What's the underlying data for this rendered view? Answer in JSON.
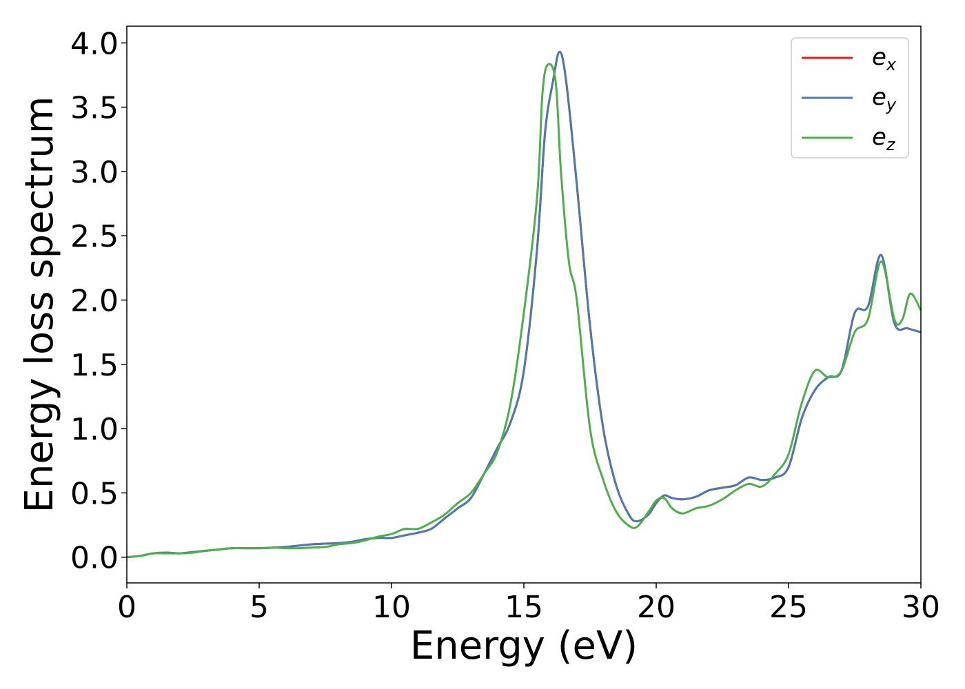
{
  "chart_data": {
    "type": "line",
    "title": "",
    "xlabel": "Energy (eV)",
    "ylabel": "Energy loss spectrum",
    "xlim": [
      0,
      30
    ],
    "ylim": [
      -0.2,
      4.13
    ],
    "grid": false,
    "legend_position": "top-right",
    "x_ticks": [
      0,
      5,
      10,
      15,
      20,
      25,
      30
    ],
    "x_tick_labels": [
      "0",
      "5",
      "10",
      "15",
      "20",
      "25",
      "30"
    ],
    "y_ticks": [
      0.0,
      0.5,
      1.0,
      1.5,
      2.0,
      2.5,
      3.0,
      3.5,
      4.0
    ],
    "y_tick_labels": [
      "0.0",
      "0.5",
      "1.0",
      "1.5",
      "2.0",
      "2.5",
      "3.0",
      "3.5",
      "4.0"
    ],
    "series": [
      {
        "name": "e",
        "sub": "x",
        "color": "#e41a1c",
        "points": [
          [
            0,
            0
          ],
          [
            0.5,
            0.01
          ],
          [
            1,
            0.03
          ],
          [
            1.5,
            0.035
          ],
          [
            2,
            0.03
          ],
          [
            2.5,
            0.04
          ],
          [
            3,
            0.05
          ],
          [
            3.5,
            0.06
          ],
          [
            4,
            0.07
          ],
          [
            5,
            0.07
          ],
          [
            6,
            0.08
          ],
          [
            7,
            0.1
          ],
          [
            8,
            0.11
          ],
          [
            8.5,
            0.12
          ],
          [
            9,
            0.14
          ],
          [
            9.5,
            0.15
          ],
          [
            10,
            0.15
          ],
          [
            10.5,
            0.17
          ],
          [
            11,
            0.19
          ],
          [
            11.5,
            0.22
          ],
          [
            12,
            0.3
          ],
          [
            12.5,
            0.38
          ],
          [
            13,
            0.46
          ],
          [
            13.5,
            0.65
          ],
          [
            14,
            0.85
          ],
          [
            14.5,
            1.05
          ],
          [
            15,
            1.45
          ],
          [
            15.5,
            2.4
          ],
          [
            15.8,
            3.3
          ],
          [
            16.1,
            3.7
          ],
          [
            16.35,
            3.93
          ],
          [
            16.6,
            3.7
          ],
          [
            17,
            2.9
          ],
          [
            17.5,
            1.8
          ],
          [
            18,
            1.0
          ],
          [
            18.5,
            0.55
          ],
          [
            19,
            0.32
          ],
          [
            19.3,
            0.28
          ],
          [
            19.7,
            0.33
          ],
          [
            20,
            0.42
          ],
          [
            20.3,
            0.48
          ],
          [
            20.6,
            0.46
          ],
          [
            21,
            0.45
          ],
          [
            21.5,
            0.47
          ],
          [
            22,
            0.52
          ],
          [
            22.5,
            0.54
          ],
          [
            23,
            0.56
          ],
          [
            23.5,
            0.62
          ],
          [
            24,
            0.6
          ],
          [
            24.5,
            0.62
          ],
          [
            25,
            0.7
          ],
          [
            25.5,
            1.08
          ],
          [
            26,
            1.3
          ],
          [
            26.5,
            1.4
          ],
          [
            27,
            1.45
          ],
          [
            27.5,
            1.9
          ],
          [
            28,
            1.95
          ],
          [
            28.5,
            2.35
          ],
          [
            29,
            1.82
          ],
          [
            29.5,
            1.78
          ],
          [
            30,
            1.75
          ]
        ]
      },
      {
        "name": "e",
        "sub": "y",
        "color": "#4a7ab0",
        "points": [
          [
            0,
            0
          ],
          [
            0.5,
            0.01
          ],
          [
            1,
            0.03
          ],
          [
            1.5,
            0.035
          ],
          [
            2,
            0.03
          ],
          [
            2.5,
            0.04
          ],
          [
            3,
            0.05
          ],
          [
            3.5,
            0.06
          ],
          [
            4,
            0.07
          ],
          [
            5,
            0.07
          ],
          [
            6,
            0.08
          ],
          [
            7,
            0.1
          ],
          [
            8,
            0.11
          ],
          [
            8.5,
            0.12
          ],
          [
            9,
            0.14
          ],
          [
            9.5,
            0.15
          ],
          [
            10,
            0.15
          ],
          [
            10.5,
            0.17
          ],
          [
            11,
            0.19
          ],
          [
            11.5,
            0.22
          ],
          [
            12,
            0.3
          ],
          [
            12.5,
            0.38
          ],
          [
            13,
            0.46
          ],
          [
            13.5,
            0.65
          ],
          [
            14,
            0.85
          ],
          [
            14.5,
            1.05
          ],
          [
            15,
            1.45
          ],
          [
            15.5,
            2.4
          ],
          [
            15.8,
            3.3
          ],
          [
            16.1,
            3.7
          ],
          [
            16.35,
            3.93
          ],
          [
            16.6,
            3.7
          ],
          [
            17,
            2.9
          ],
          [
            17.5,
            1.8
          ],
          [
            18,
            1.0
          ],
          [
            18.5,
            0.55
          ],
          [
            19,
            0.32
          ],
          [
            19.3,
            0.28
          ],
          [
            19.7,
            0.33
          ],
          [
            20,
            0.42
          ],
          [
            20.3,
            0.48
          ],
          [
            20.6,
            0.46
          ],
          [
            21,
            0.45
          ],
          [
            21.5,
            0.47
          ],
          [
            22,
            0.52
          ],
          [
            22.5,
            0.54
          ],
          [
            23,
            0.56
          ],
          [
            23.5,
            0.62
          ],
          [
            24,
            0.6
          ],
          [
            24.5,
            0.62
          ],
          [
            25,
            0.7
          ],
          [
            25.5,
            1.08
          ],
          [
            26,
            1.3
          ],
          [
            26.5,
            1.4
          ],
          [
            27,
            1.45
          ],
          [
            27.5,
            1.9
          ],
          [
            28,
            1.95
          ],
          [
            28.5,
            2.35
          ],
          [
            29,
            1.82
          ],
          [
            29.5,
            1.78
          ],
          [
            30,
            1.75
          ]
        ]
      },
      {
        "name": "e",
        "sub": "z",
        "color": "#4daf4a",
        "points": [
          [
            0,
            0
          ],
          [
            0.5,
            0.01
          ],
          [
            1,
            0.03
          ],
          [
            1.5,
            0.03
          ],
          [
            2,
            0.03
          ],
          [
            2.5,
            0.035
          ],
          [
            3,
            0.05
          ],
          [
            3.5,
            0.06
          ],
          [
            4,
            0.07
          ],
          [
            5,
            0.07
          ],
          [
            5.5,
            0.075
          ],
          [
            6,
            0.07
          ],
          [
            6.5,
            0.07
          ],
          [
            7,
            0.075
          ],
          [
            7.5,
            0.08
          ],
          [
            8,
            0.1
          ],
          [
            8.5,
            0.11
          ],
          [
            9,
            0.13
          ],
          [
            9.5,
            0.16
          ],
          [
            10,
            0.18
          ],
          [
            10.5,
            0.22
          ],
          [
            11,
            0.22
          ],
          [
            11.5,
            0.27
          ],
          [
            12,
            0.33
          ],
          [
            12.5,
            0.42
          ],
          [
            13,
            0.5
          ],
          [
            13.5,
            0.65
          ],
          [
            14,
            0.82
          ],
          [
            14.5,
            1.2
          ],
          [
            15,
            1.9
          ],
          [
            15.5,
            2.8
          ],
          [
            15.7,
            3.6
          ],
          [
            15.9,
            3.83
          ],
          [
            16.2,
            3.7
          ],
          [
            16.4,
            3.0
          ],
          [
            16.7,
            2.3
          ],
          [
            17,
            2.0
          ],
          [
            17.5,
            1.0
          ],
          [
            18,
            0.6
          ],
          [
            18.5,
            0.35
          ],
          [
            19,
            0.24
          ],
          [
            19.3,
            0.24
          ],
          [
            19.7,
            0.35
          ],
          [
            20,
            0.44
          ],
          [
            20.3,
            0.46
          ],
          [
            20.6,
            0.38
          ],
          [
            21,
            0.34
          ],
          [
            21.5,
            0.38
          ],
          [
            22,
            0.4
          ],
          [
            22.5,
            0.45
          ],
          [
            23,
            0.52
          ],
          [
            23.5,
            0.57
          ],
          [
            24,
            0.55
          ],
          [
            24.5,
            0.65
          ],
          [
            25,
            0.8
          ],
          [
            25.5,
            1.2
          ],
          [
            26,
            1.45
          ],
          [
            26.5,
            1.4
          ],
          [
            27,
            1.45
          ],
          [
            27.5,
            1.75
          ],
          [
            28,
            1.85
          ],
          [
            28.5,
            2.3
          ],
          [
            29,
            1.85
          ],
          [
            29.3,
            1.85
          ],
          [
            29.6,
            2.05
          ],
          [
            30,
            1.92
          ]
        ]
      }
    ]
  }
}
